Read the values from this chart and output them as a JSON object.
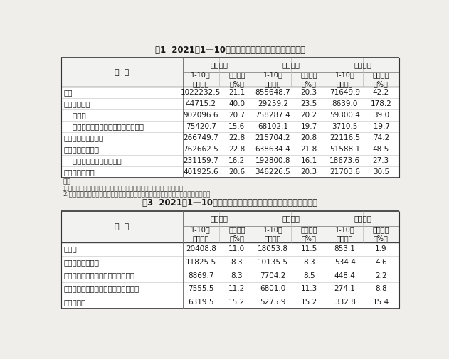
{
  "title1": "表1  2021年1—10月份规模以上工业企业主要财务指标",
  "title2": "表3  2021年1—10月份规模以上工业企业主要财务指标（分行业）",
  "group_headers": [
    "营业收入",
    "营业成本",
    "利润总额"
  ],
  "group2_headers": [
    "营业收入",
    "营业成本",
    "利润总额"
  ],
  "sub_headers": [
    "1-10月\n（亿元）",
    "同比增长\n（%）",
    "1-10月\n（亿元）",
    "同比增长\n（%）",
    "1-10月\n（亿元）",
    "同比增长\n（%）"
  ],
  "col_label1": "分  组",
  "col_label2": "行  业",
  "table1_rows": [
    [
      "总计",
      "1022232.5",
      "21.1",
      "855648.7",
      "20.3",
      "71649.9",
      "42.2"
    ],
    [
      "其中：采矿业",
      "44715.2",
      "40.0",
      "29259.2",
      "23.5",
      "8639.0",
      "178.2"
    ],
    [
      "    制造业",
      "902096.6",
      "20.7",
      "758287.4",
      "20.2",
      "59300.4",
      "39.0"
    ],
    [
      "    电力、热力、燃气及水生产和供应业",
      "75420.7",
      "15.6",
      "68102.1",
      "19.7",
      "3710.5",
      "-19.7"
    ],
    [
      "其中：国有控股企业",
      "266749.7",
      "22.8",
      "215704.2",
      "20.8",
      "22116.5",
      "74.2"
    ],
    [
      "其中：股份制企业",
      "762662.5",
      "22.8",
      "638634.4",
      "21.8",
      "51588.1",
      "48.5"
    ],
    [
      "    外商及港澳台商投资企业",
      "231159.7",
      "16.2",
      "192800.8",
      "16.1",
      "18673.6",
      "27.3"
    ],
    [
      "其中：私营企业",
      "401925.6",
      "20.6",
      "346226.5",
      "20.3",
      "21703.6",
      "30.5"
    ]
  ],
  "table1_notes": [
    "注：",
    "1.经济类型分组之间存在交叉，故各经济类型企业数据之和大于总计。",
    "2.本表部分指标存在总计不等于分项之和情况，是数据四舍五入所致，末作机械调整。"
  ],
  "table2_rows": [
    [
      "纺织业",
      "20408.8",
      "11.0",
      "18053.8",
      "11.5",
      "853.1",
      "1.9"
    ],
    [
      "纺织服装、服饰业",
      "11825.5",
      "8.3",
      "10135.5",
      "8.3",
      "534.4",
      "4.6"
    ],
    [
      "皮革、毛皮、羽毛及其制品和制鞋业",
      "8869.7",
      "8.3",
      "7704.2",
      "8.5",
      "448.4",
      "2.2"
    ],
    [
      "木材加工和木、竹、藤、棕、草制品业",
      "7555.5",
      "11.2",
      "6801.0",
      "11.3",
      "274.1",
      "8.8"
    ],
    [
      "家具制造业",
      "6319.5",
      "15.2",
      "5275.9",
      "15.2",
      "332.8",
      "15.4"
    ]
  ],
  "bg_color": "#f0eeea",
  "white": "#ffffff",
  "text_dark": "#1a1a1a",
  "text_med": "#333333",
  "text_light": "#555555",
  "line_dark": "#555555",
  "line_light": "#aaaaaa",
  "title_fs": 8.5,
  "header_fs": 7.5,
  "sub_fs": 7.0,
  "data_fs": 7.5,
  "note_fs": 6.5
}
